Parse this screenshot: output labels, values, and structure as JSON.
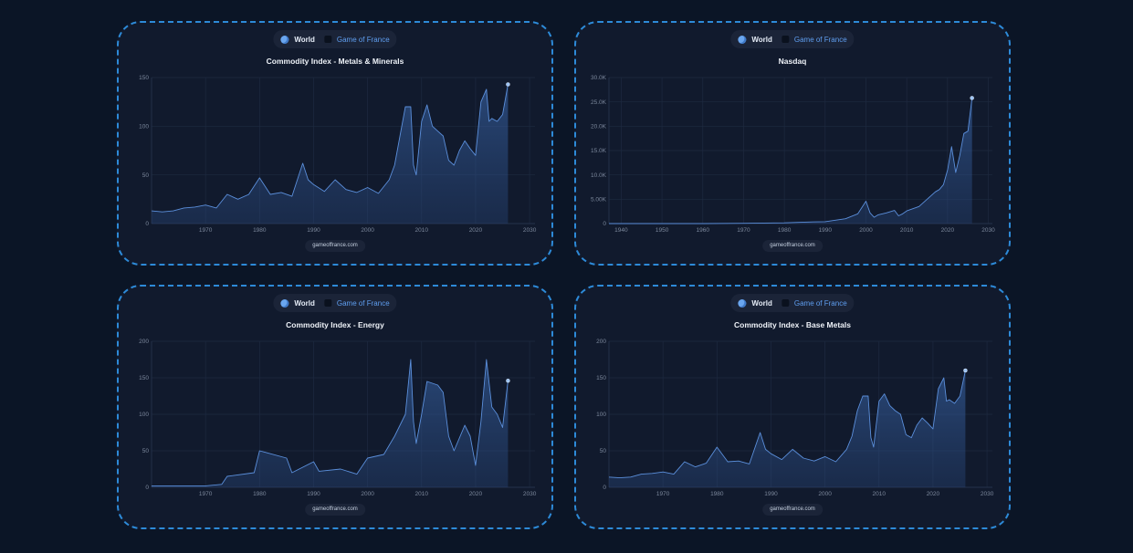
{
  "chart_data": [
    {
      "type": "area",
      "title": "Commodity Index - Metals & Minerals",
      "legend": {
        "items": [
          "World",
          "Game of France"
        ],
        "placement": "top-center"
      },
      "footer": "gameoffrance.com",
      "xlim": [
        1960,
        2031
      ],
      "ylim": [
        0,
        150
      ],
      "x_ticks": [
        1970,
        1980,
        1990,
        2000,
        2010,
        2020,
        2030
      ],
      "y_ticks": [
        0,
        50,
        100,
        150
      ],
      "y_tick_labels": [
        "0",
        "50",
        "100",
        "150"
      ],
      "grid": true,
      "series": [
        {
          "x": [
            1960,
            1962,
            1964,
            1966,
            1968,
            1970,
            1972,
            1974,
            1976,
            1978,
            1980,
            1982,
            1984,
            1986,
            1988,
            1989,
            1990,
            1992,
            1994,
            1996,
            1998,
            2000,
            2002,
            2004,
            2005,
            2006,
            2007,
            2008,
            2008.5,
            2009,
            2010,
            2011,
            2012,
            2013,
            2014,
            2015,
            2016,
            2017,
            2018,
            2019,
            2020,
            2021,
            2022,
            2022.5,
            2023,
            2024,
            2025,
            2026
          ],
          "y": [
            13,
            12,
            13,
            16,
            17,
            19,
            16,
            30,
            25,
            30,
            47,
            30,
            32,
            28,
            62,
            45,
            40,
            33,
            45,
            35,
            32,
            37,
            31,
            45,
            60,
            90,
            120,
            120,
            60,
            50,
            105,
            122,
            100,
            95,
            90,
            65,
            60,
            75,
            85,
            77,
            70,
            125,
            138,
            105,
            108,
            105,
            112,
            143
          ]
        }
      ]
    },
    {
      "type": "area",
      "title": "Nasdaq",
      "legend": {
        "items": [
          "World",
          "Game of France"
        ],
        "placement": "top-center"
      },
      "footer": "gameoffrance.com",
      "xlim": [
        1937,
        2031
      ],
      "ylim": [
        0,
        30000
      ],
      "x_ticks": [
        1940,
        1950,
        1960,
        1970,
        1980,
        1990,
        2000,
        2010,
        2020,
        2030
      ],
      "y_ticks": [
        0,
        5000,
        10000,
        15000,
        20000,
        25000,
        30000
      ],
      "y_tick_labels": [
        "0",
        "5.00K",
        "10.0K",
        "15.0K",
        "20.0K",
        "25.0K",
        "30.0K"
      ],
      "grid": true,
      "series": [
        {
          "x": [
            1937,
            1950,
            1960,
            1970,
            1980,
            1985,
            1990,
            1995,
            1998,
            2000,
            2001,
            2002,
            2003,
            2005,
            2007,
            2008,
            2009,
            2010,
            2013,
            2015,
            2017,
            2018,
            2019,
            2020,
            2021,
            2022,
            2023,
            2024,
            2025,
            2026
          ],
          "y": [
            0,
            0,
            0,
            50,
            150,
            300,
            400,
            1000,
            2000,
            4600,
            2200,
            1300,
            1800,
            2200,
            2700,
            1600,
            2000,
            2600,
            3500,
            5000,
            6500,
            7000,
            8000,
            11000,
            15800,
            10500,
            14000,
            18500,
            19000,
            25800
          ]
        }
      ]
    },
    {
      "type": "area",
      "title": "Commodity Index - Energy",
      "legend": {
        "items": [
          "World",
          "Game of France"
        ],
        "placement": "top-center"
      },
      "footer": "gameoffrance.com",
      "xlim": [
        1960,
        2031
      ],
      "ylim": [
        0,
        200
      ],
      "x_ticks": [
        1970,
        1980,
        1990,
        2000,
        2010,
        2020,
        2030
      ],
      "y_ticks": [
        0,
        50,
        100,
        150,
        200
      ],
      "y_tick_labels": [
        "0",
        "50",
        "100",
        "150",
        "200"
      ],
      "grid": true,
      "series": [
        {
          "x": [
            1960,
            1965,
            1970,
            1973,
            1974,
            1979,
            1980,
            1981,
            1985,
            1986,
            1990,
            1991,
            1995,
            1998,
            2000,
            2003,
            2005,
            2007,
            2008,
            2008.5,
            2009,
            2010,
            2011,
            2013,
            2014,
            2015,
            2016,
            2018,
            2019,
            2020,
            2021,
            2022,
            2023,
            2024,
            2025,
            2026
          ],
          "y": [
            2,
            2,
            2,
            4,
            15,
            20,
            50,
            48,
            40,
            20,
            35,
            22,
            25,
            18,
            40,
            45,
            70,
            100,
            175,
            90,
            60,
            100,
            145,
            140,
            130,
            70,
            50,
            85,
            70,
            30,
            90,
            175,
            110,
            100,
            82,
            146
          ]
        }
      ]
    },
    {
      "type": "area",
      "title": "Commodity Index - Base Metals",
      "legend": {
        "items": [
          "World",
          "Game of France"
        ],
        "placement": "top-center"
      },
      "footer": "gameoffrance.com",
      "xlim": [
        1960,
        2031
      ],
      "ylim": [
        0,
        200
      ],
      "x_ticks": [
        1970,
        1980,
        1990,
        2000,
        2010,
        2020,
        2030
      ],
      "y_ticks": [
        0,
        50,
        100,
        150,
        200
      ],
      "y_tick_labels": [
        "0",
        "50",
        "100",
        "150",
        "200"
      ],
      "grid": true,
      "series": [
        {
          "x": [
            1960,
            1962,
            1964,
            1966,
            1968,
            1970,
            1972,
            1974,
            1976,
            1978,
            1980,
            1982,
            1984,
            1986,
            1988,
            1989,
            1990,
            1992,
            1994,
            1996,
            1998,
            2000,
            2002,
            2004,
            2005,
            2006,
            2007,
            2008,
            2008.5,
            2009,
            2010,
            2011,
            2012,
            2013,
            2014,
            2015,
            2016,
            2017,
            2018,
            2019,
            2020,
            2021,
            2022,
            2022.5,
            2023,
            2024,
            2025,
            2026
          ],
          "y": [
            14,
            13,
            14,
            18,
            19,
            21,
            18,
            35,
            28,
            33,
            55,
            35,
            36,
            32,
            75,
            52,
            46,
            38,
            52,
            40,
            36,
            42,
            35,
            52,
            70,
            105,
            125,
            125,
            68,
            55,
            118,
            128,
            112,
            105,
            100,
            72,
            68,
            85,
            95,
            88,
            80,
            135,
            150,
            118,
            120,
            115,
            125,
            160
          ]
        }
      ]
    }
  ]
}
